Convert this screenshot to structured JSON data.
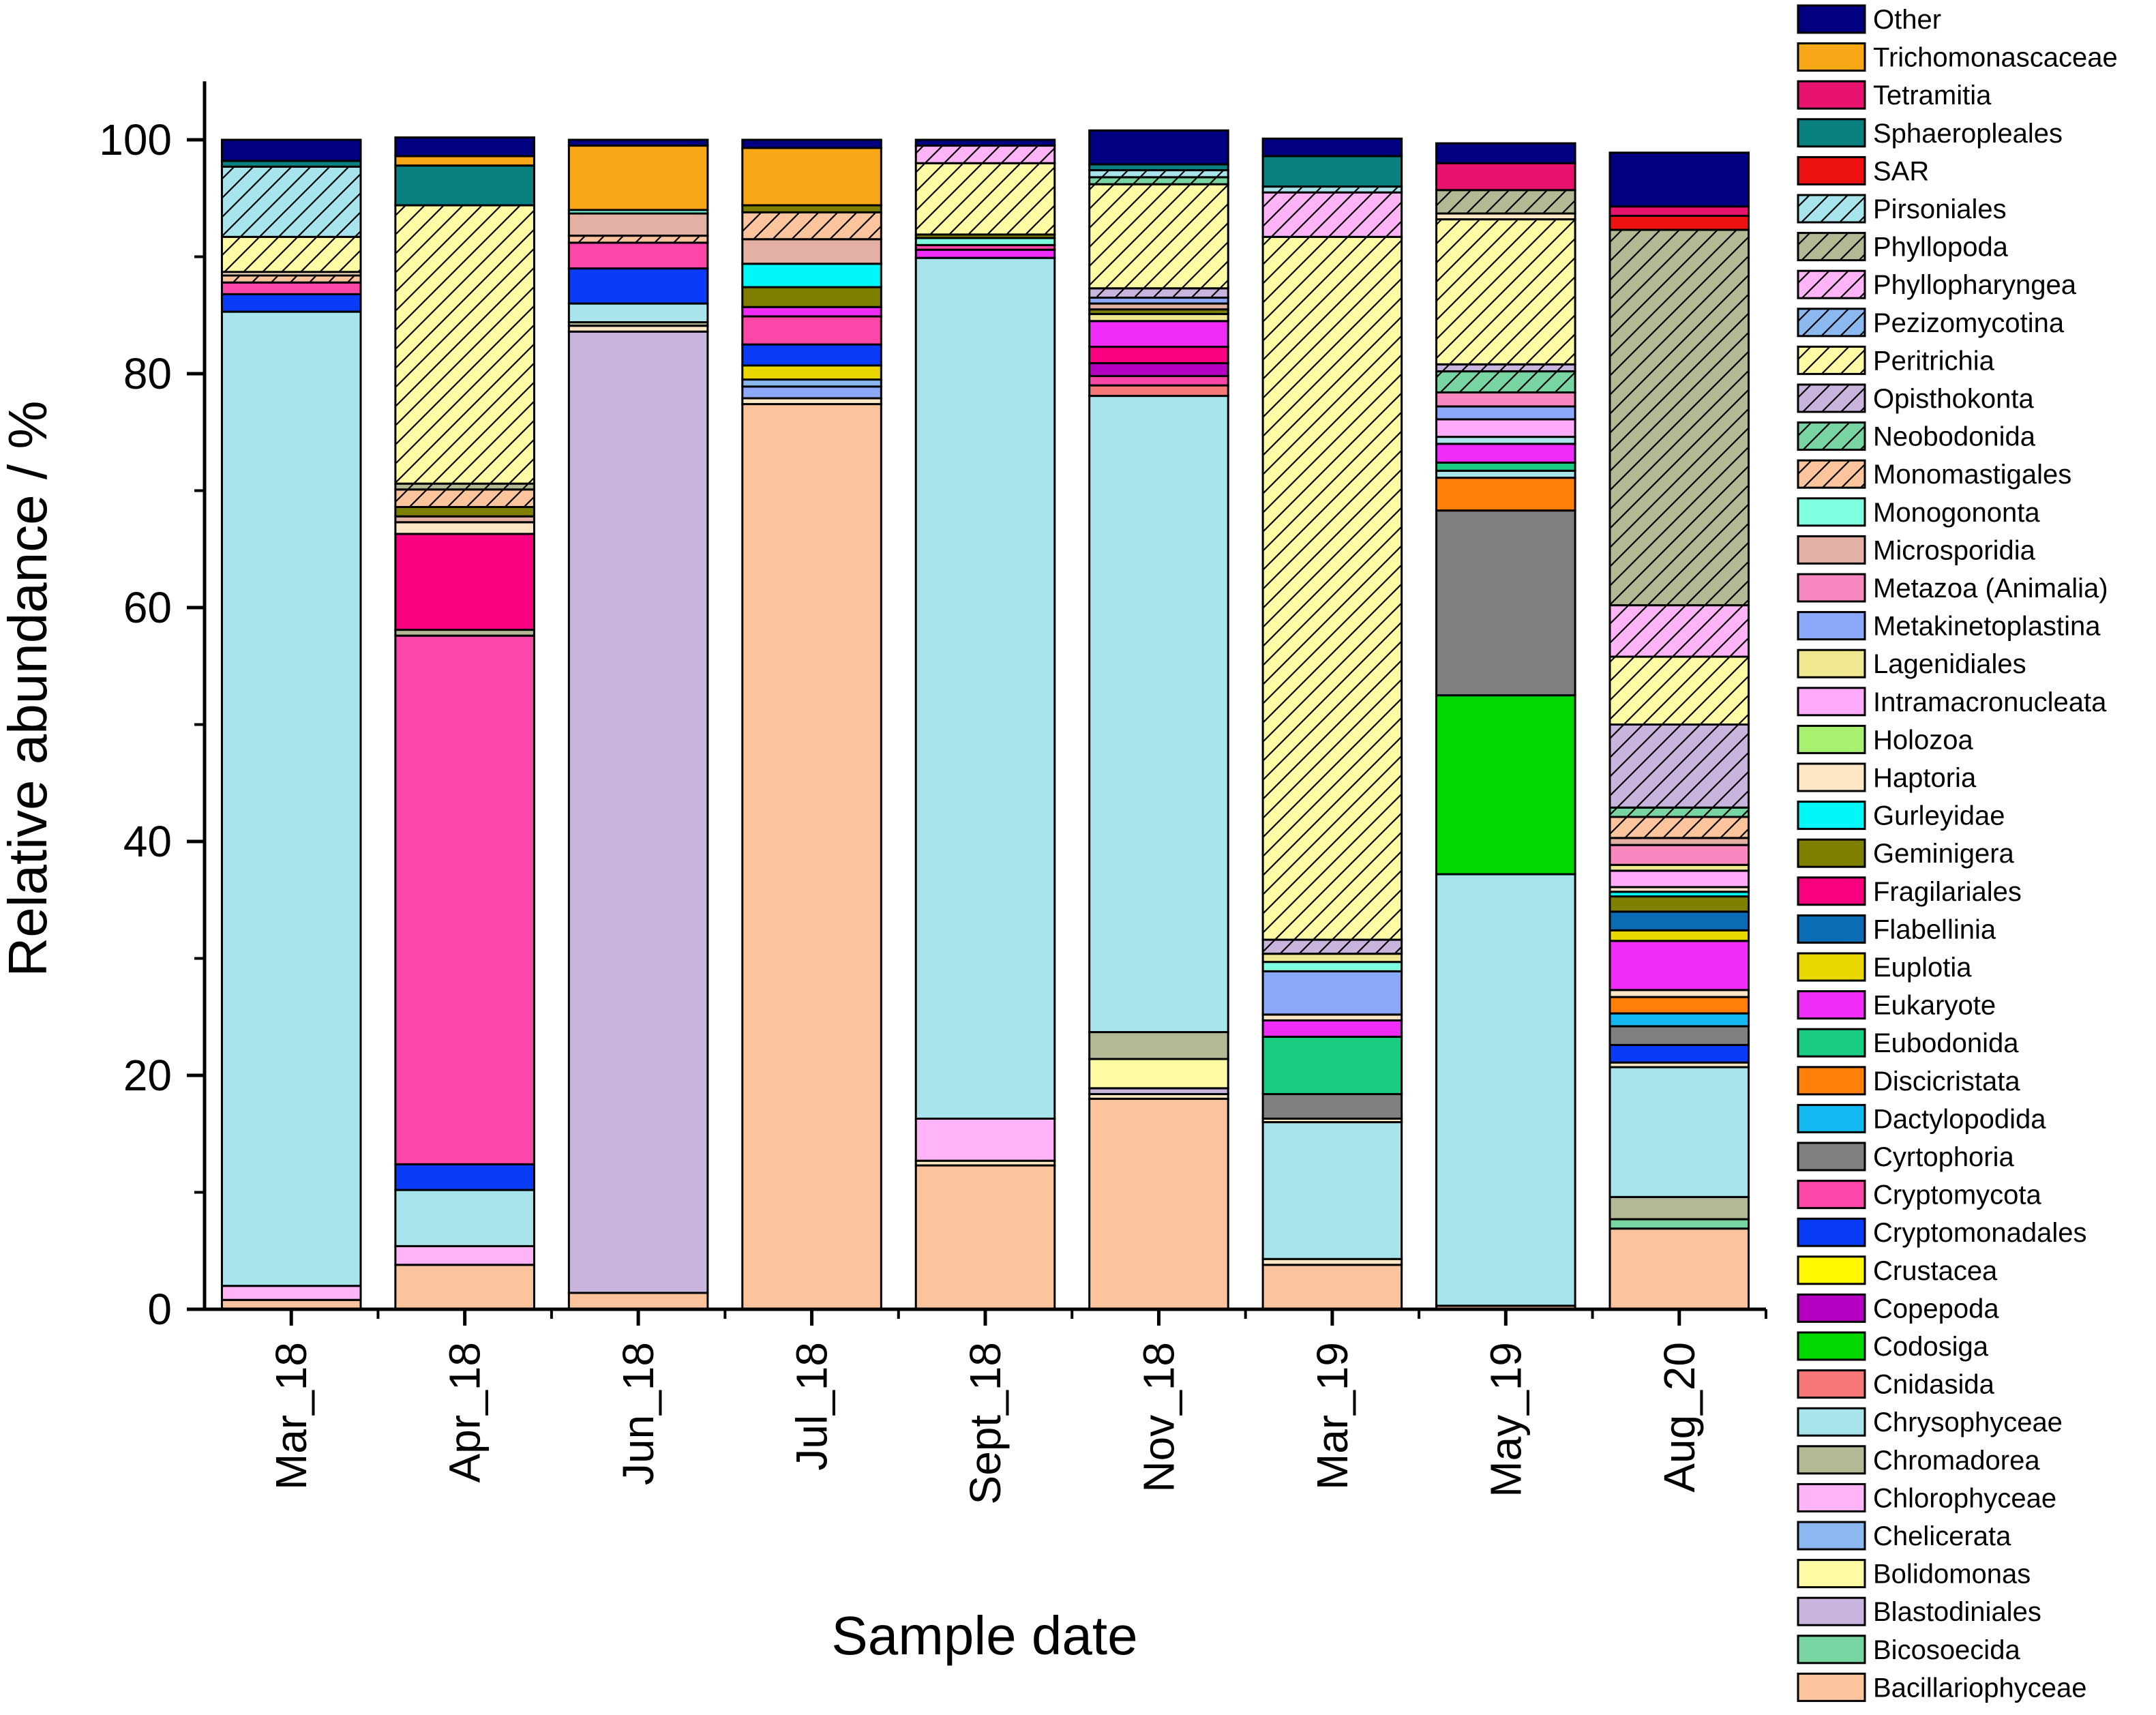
{
  "chart_data": {
    "type": "bar",
    "stacked": true,
    "title": "",
    "xlabel": "Sample date",
    "ylabel": "Relative abundance / %",
    "ylim": [
      0,
      105
    ],
    "yticks": [
      0,
      20,
      40,
      60,
      80,
      100
    ],
    "categories": [
      "Mar_18",
      "Apr_18",
      "Jun_18",
      "Jul_18",
      "Sept_18",
      "Nov_18",
      "Mar_19",
      "May_19",
      "Aug_20"
    ],
    "legend_position": "right",
    "legend": [
      "Other",
      "Trichomonascaceae",
      "Tetramitia",
      "Sphaeropleales",
      "SAR",
      "Pirsoniales",
      "Phyllopoda",
      "Phyllopharyngea",
      "Pezizomycotina",
      "Peritrichia",
      "Opisthokonta",
      "Neobodonida",
      "Monomastigales",
      "Monogononta",
      "Microsporidia",
      "Metazoa (Animalia)",
      "Metakinetoplastina",
      "Lagenidiales",
      "Intramacronucleata",
      "Holozoa",
      "Haptoria",
      "Gurleyidae",
      "Geminigera",
      "Fragilariales",
      "Flabellinia",
      "Euplotia",
      "Eukaryote",
      "Eubodonida",
      "Discicristata",
      "Dactylopodida",
      "Cyrtophoria",
      "Cryptomycota",
      "Cryptomonadales",
      "Crustacea",
      "Copepoda",
      "Codosiga",
      "Cnidasida",
      "Chrysophyceae",
      "Chromadorea",
      "Chlorophyceae",
      "Chelicerata",
      "Bolidomonas",
      "Blastodiniales",
      "Bicosoecida",
      "Bacillariophyceae"
    ],
    "series_styles": {
      "Other": {
        "color": "#000080",
        "hatch": "none"
      },
      "Trichomonascaceae": {
        "color": "#F8A817",
        "hatch": "none"
      },
      "Tetramitia": {
        "color": "#E8126F",
        "hatch": "none"
      },
      "Sphaeropleales": {
        "color": "#0A8080",
        "hatch": "none"
      },
      "SAR": {
        "color": "#EE1111",
        "hatch": "none"
      },
      "Pirsoniales": {
        "color": "#A8E4EC",
        "hatch": "diag"
      },
      "Phyllopoda": {
        "color": "#B4B894",
        "hatch": "diag"
      },
      "Phyllopharyngea": {
        "color": "#FFB4F8",
        "hatch": "diag"
      },
      "Pezizomycotina": {
        "color": "#8CB8F0",
        "hatch": "diag"
      },
      "Peritrichia": {
        "color": "#FFFAA4",
        "hatch": "diag"
      },
      "Opisthokonta": {
        "color": "#C8B4DC",
        "hatch": "diag"
      },
      "Neobodonida": {
        "color": "#78D4A0",
        "hatch": "diag"
      },
      "Monomastigales": {
        "color": "#FBC49C",
        "hatch": "diag"
      },
      "Monogononta": {
        "color": "#7EFFE0",
        "hatch": "none"
      },
      "Microsporidia": {
        "color": "#E4B0A4",
        "hatch": "none"
      },
      "Metazoa (Animalia)": {
        "color": "#F889C0",
        "hatch": "none"
      },
      "Metakinetoplastina": {
        "color": "#8CA8F8",
        "hatch": "none"
      },
      "Lagenidiales": {
        "color": "#F0E890",
        "hatch": "none"
      },
      "Intramacronucleata": {
        "color": "#FFAAFA",
        "hatch": "none"
      },
      "Holozoa": {
        "color": "#A8F070",
        "hatch": "none"
      },
      "Haptoria": {
        "color": "#FFE6C4",
        "hatch": "none"
      },
      "Gurleyidae": {
        "color": "#00F8F8",
        "hatch": "none"
      },
      "Geminigera": {
        "color": "#808000",
        "hatch": "none"
      },
      "Fragilariales": {
        "color": "#F80080",
        "hatch": "none"
      },
      "Flabellinia": {
        "color": "#0A6CB4",
        "hatch": "none"
      },
      "Euplotia": {
        "color": "#E8D800",
        "hatch": "none"
      },
      "Eukaryote": {
        "color": "#F02CF8",
        "hatch": "none"
      },
      "Eubodonida": {
        "color": "#18CC80",
        "hatch": "none"
      },
      "Discicristata": {
        "color": "#FF7F0A",
        "hatch": "none"
      },
      "Dactylopodida": {
        "color": "#14B8F0",
        "hatch": "none"
      },
      "Cyrtophoria": {
        "color": "#808080",
        "hatch": "none"
      },
      "Cryptomycota": {
        "color": "#FC46A8",
        "hatch": "none"
      },
      "Cryptomonadales": {
        "color": "#0A3CF8",
        "hatch": "none"
      },
      "Crustacea": {
        "color": "#FFF800",
        "hatch": "none"
      },
      "Copepoda": {
        "color": "#B400C0",
        "hatch": "none"
      },
      "Codosiga": {
        "color": "#00D800",
        "hatch": "none"
      },
      "Cnidasida": {
        "color": "#F87878",
        "hatch": "none"
      },
      "Chrysophyceae": {
        "color": "#A8E4EC",
        "hatch": "none"
      },
      "Chromadorea": {
        "color": "#B4B894",
        "hatch": "none"
      },
      "Chlorophyceae": {
        "color": "#FFB4F8",
        "hatch": "none"
      },
      "Chelicerata": {
        "color": "#8CB8F0",
        "hatch": "none"
      },
      "Bolidomonas": {
        "color": "#FFFAA4",
        "hatch": "none"
      },
      "Blastodiniales": {
        "color": "#C8B4DC",
        "hatch": "none"
      },
      "Bicosoecida": {
        "color": "#78D4A0",
        "hatch": "none"
      },
      "Bacillariophyceae": {
        "color": "#FBC49C",
        "hatch": "none"
      }
    },
    "bars": [
      {
        "category": "Mar_18",
        "segments": [
          {
            "taxon": "Bacillariophyceae",
            "value": 0.8
          },
          {
            "taxon": "Chlorophyceae",
            "value": 1.2
          },
          {
            "taxon": "Chrysophyceae",
            "value": 83.3
          },
          {
            "taxon": "Cryptomonadales",
            "value": 1.5
          },
          {
            "taxon": "Cryptomycota",
            "value": 1.0
          },
          {
            "taxon": "Monomastigales",
            "value": 0.6
          },
          {
            "taxon": "Haptoria",
            "value": 0.3
          },
          {
            "taxon": "Peritrichia",
            "value": 3.0
          },
          {
            "taxon": "Pirsoniales",
            "value": 6.0
          },
          {
            "taxon": "Sphaeropleales",
            "value": 0.5
          },
          {
            "taxon": "Other",
            "value": 1.8
          }
        ]
      },
      {
        "category": "Apr_18",
        "segments": [
          {
            "taxon": "Bacillariophyceae",
            "value": 3.8
          },
          {
            "taxon": "Chlorophyceae",
            "value": 1.6
          },
          {
            "taxon": "Chrysophyceae",
            "value": 4.8
          },
          {
            "taxon": "Cryptomonadales",
            "value": 2.2
          },
          {
            "taxon": "Cryptomycota",
            "value": 45.2
          },
          {
            "taxon": "Chromadorea",
            "value": 0.5
          },
          {
            "taxon": "Fragilariales",
            "value": 8.2
          },
          {
            "taxon": "Haptoria",
            "value": 1.0
          },
          {
            "taxon": "Microsporidia",
            "value": 0.5
          },
          {
            "taxon": "Geminigera",
            "value": 0.8
          },
          {
            "taxon": "Monomastigales",
            "value": 1.5
          },
          {
            "taxon": "Phyllopoda",
            "value": 0.5
          },
          {
            "taxon": "Peritrichia",
            "value": 23.8
          },
          {
            "taxon": "Sphaeropleales",
            "value": 3.4
          },
          {
            "taxon": "Trichomonascaceae",
            "value": 0.8
          },
          {
            "taxon": "Other",
            "value": 1.6
          }
        ]
      },
      {
        "category": "Jun_18",
        "segments": [
          {
            "taxon": "Bacillariophyceae",
            "value": 1.4
          },
          {
            "taxon": "Blastodiniales",
            "value": 82.2
          },
          {
            "taxon": "Haptoria",
            "value": 0.5
          },
          {
            "taxon": "Chromadorea",
            "value": 0.3
          },
          {
            "taxon": "Chrysophyceae",
            "value": 1.6
          },
          {
            "taxon": "Cryptomonadales",
            "value": 3.0
          },
          {
            "taxon": "Cryptomycota",
            "value": 2.2
          },
          {
            "taxon": "Monomastigales",
            "value": 0.6
          },
          {
            "taxon": "Microsporidia",
            "value": 1.9
          },
          {
            "taxon": "Monogononta",
            "value": 0.3
          },
          {
            "taxon": "Trichomonascaceae",
            "value": 5.5
          },
          {
            "taxon": "Other",
            "value": 0.5
          }
        ]
      },
      {
        "category": "Jul_18",
        "segments": [
          {
            "taxon": "Bacillariophyceae",
            "value": 77.4
          },
          {
            "taxon": "Haptoria",
            "value": 0.5
          },
          {
            "taxon": "Metakinetoplastina",
            "value": 1.0
          },
          {
            "taxon": "Chelicerata",
            "value": 0.6
          },
          {
            "taxon": "Euplotia",
            "value": 1.2
          },
          {
            "taxon": "Cryptomonadales",
            "value": 1.8
          },
          {
            "taxon": "Cryptomycota",
            "value": 2.4
          },
          {
            "taxon": "Eukaryote",
            "value": 0.8
          },
          {
            "taxon": "Geminigera",
            "value": 1.7
          },
          {
            "taxon": "Gurleyidae",
            "value": 2.0
          },
          {
            "taxon": "Microsporidia",
            "value": 2.1
          },
          {
            "taxon": "Monomastigales",
            "value": 2.3
          },
          {
            "taxon": "Geminigera",
            "value": 0.6
          },
          {
            "taxon": "Trichomonascaceae",
            "value": 4.9
          },
          {
            "taxon": "Other",
            "value": 0.7
          }
        ]
      },
      {
        "category": "Sept_18",
        "segments": [
          {
            "taxon": "Bacillariophyceae",
            "value": 12.3
          },
          {
            "taxon": "Haptoria",
            "value": 0.4
          },
          {
            "taxon": "Chlorophyceae",
            "value": 3.6
          },
          {
            "taxon": "Chrysophyceae",
            "value": 73.6
          },
          {
            "taxon": "Eukaryote",
            "value": 0.7
          },
          {
            "taxon": "Cryptomycota",
            "value": 0.4
          },
          {
            "taxon": "Monogononta",
            "value": 0.6
          },
          {
            "taxon": "Geminigera",
            "value": 0.3
          },
          {
            "taxon": "Peritrichia",
            "value": 6.1
          },
          {
            "taxon": "Phyllopharyngea",
            "value": 1.5
          },
          {
            "taxon": "Other",
            "value": 0.5
          }
        ]
      },
      {
        "category": "Nov_18",
        "segments": [
          {
            "taxon": "Bacillariophyceae",
            "value": 18.0
          },
          {
            "taxon": "Haptoria",
            "value": 0.4
          },
          {
            "taxon": "Blastodiniales",
            "value": 0.5
          },
          {
            "taxon": "Bolidomonas",
            "value": 2.5
          },
          {
            "taxon": "Chromadorea",
            "value": 2.3
          },
          {
            "taxon": "Chrysophyceae",
            "value": 54.4
          },
          {
            "taxon": "Cnidasida",
            "value": 0.9
          },
          {
            "taxon": "Cryptomycota",
            "value": 0.8
          },
          {
            "taxon": "Copepoda",
            "value": 1.1
          },
          {
            "taxon": "Fragilariales",
            "value": 1.4
          },
          {
            "taxon": "Eukaryote",
            "value": 2.2
          },
          {
            "taxon": "Lagenidiales",
            "value": 0.6
          },
          {
            "taxon": "Geminigera",
            "value": 0.4
          },
          {
            "taxon": "Microsporidia",
            "value": 0.5
          },
          {
            "taxon": "Metakinetoplastina",
            "value": 0.5
          },
          {
            "taxon": "Opisthokonta",
            "value": 0.8
          },
          {
            "taxon": "Peritrichia",
            "value": 8.9
          },
          {
            "taxon": "Neobodonida",
            "value": 0.6
          },
          {
            "taxon": "Pirsoniales",
            "value": 0.6
          },
          {
            "taxon": "Sphaeropleales",
            "value": 0.5
          },
          {
            "taxon": "Other",
            "value": 2.9
          }
        ]
      },
      {
        "category": "Mar_19",
        "segments": [
          {
            "taxon": "Bacillariophyceae",
            "value": 3.8
          },
          {
            "taxon": "Haptoria",
            "value": 0.5
          },
          {
            "taxon": "Chrysophyceae",
            "value": 11.7
          },
          {
            "taxon": "Haptoria",
            "value": 0.3
          },
          {
            "taxon": "Cyrtophoria",
            "value": 2.1
          },
          {
            "taxon": "Eubodonida",
            "value": 4.9
          },
          {
            "taxon": "Eukaryote",
            "value": 1.4
          },
          {
            "taxon": "Haptoria",
            "value": 0.5
          },
          {
            "taxon": "Metakinetoplastina",
            "value": 3.7
          },
          {
            "taxon": "Monogononta",
            "value": 0.8
          },
          {
            "taxon": "Lagenidiales",
            "value": 0.7
          },
          {
            "taxon": "Opisthokonta",
            "value": 1.2
          },
          {
            "taxon": "Peritrichia",
            "value": 60.1
          },
          {
            "taxon": "Phyllopharyngea",
            "value": 3.8
          },
          {
            "taxon": "Pirsoniales",
            "value": 0.5
          },
          {
            "taxon": "Sphaeropleales",
            "value": 2.6
          },
          {
            "taxon": "Other",
            "value": 1.5
          }
        ]
      },
      {
        "category": "May_19",
        "segments": [
          {
            "taxon": "Bacillariophyceae",
            "value": 0.3
          },
          {
            "taxon": "Chrysophyceae",
            "value": 36.9
          },
          {
            "taxon": "Codosiga",
            "value": 15.3
          },
          {
            "taxon": "Cyrtophoria",
            "value": 15.8
          },
          {
            "taxon": "Discicristata",
            "value": 2.8
          },
          {
            "taxon": "Chrysophyceae",
            "value": 0.6
          },
          {
            "taxon": "Eubodonida",
            "value": 0.7
          },
          {
            "taxon": "Eukaryote",
            "value": 1.6
          },
          {
            "taxon": "Chrysophyceae",
            "value": 0.6
          },
          {
            "taxon": "Intramacronucleata",
            "value": 1.5
          },
          {
            "taxon": "Metakinetoplastina",
            "value": 1.1
          },
          {
            "taxon": "Metazoa (Animalia)",
            "value": 1.2
          },
          {
            "taxon": "Neobodonida",
            "value": 1.8
          },
          {
            "taxon": "Opisthokonta",
            "value": 0.6
          },
          {
            "taxon": "Peritrichia",
            "value": 12.4
          },
          {
            "taxon": "Haptoria",
            "value": 0.5
          },
          {
            "taxon": "Phyllopoda",
            "value": 2.0
          },
          {
            "taxon": "Tetramitia",
            "value": 2.3
          },
          {
            "taxon": "Other",
            "value": 1.7
          }
        ]
      },
      {
        "category": "Aug_20",
        "segments": [
          {
            "taxon": "Bacillariophyceae",
            "value": 6.9
          },
          {
            "taxon": "Bicosoecida",
            "value": 0.8
          },
          {
            "taxon": "Chromadorea",
            "value": 1.9
          },
          {
            "taxon": "Chrysophyceae",
            "value": 11.1
          },
          {
            "taxon": "Haptoria",
            "value": 0.4
          },
          {
            "taxon": "Cryptomonadales",
            "value": 1.5
          },
          {
            "taxon": "Cyrtophoria",
            "value": 1.6
          },
          {
            "taxon": "Dactylopodida",
            "value": 1.1
          },
          {
            "taxon": "Discicristata",
            "value": 1.4
          },
          {
            "taxon": "Haptoria",
            "value": 0.6
          },
          {
            "taxon": "Eukaryote",
            "value": 4.2
          },
          {
            "taxon": "Euplotia",
            "value": 0.9
          },
          {
            "taxon": "Flabellinia",
            "value": 1.6
          },
          {
            "taxon": "Geminigera",
            "value": 1.3
          },
          {
            "taxon": "Gurleyidae",
            "value": 0.4
          },
          {
            "taxon": "Haptoria",
            "value": 0.4
          },
          {
            "taxon": "Intramacronucleata",
            "value": 1.4
          },
          {
            "taxon": "Lagenidiales",
            "value": 0.5
          },
          {
            "taxon": "Metazoa (Animalia)",
            "value": 1.7
          },
          {
            "taxon": "Microsporidia",
            "value": 0.6
          },
          {
            "taxon": "Monomastigales",
            "value": 1.8
          },
          {
            "taxon": "Neobodonida",
            "value": 0.8
          },
          {
            "taxon": "Opisthokonta",
            "value": 7.1
          },
          {
            "taxon": "Peritrichia",
            "value": 5.8
          },
          {
            "taxon": "Phyllopharyngea",
            "value": 4.4
          },
          {
            "taxon": "Phyllopoda",
            "value": 32.1
          },
          {
            "taxon": "SAR",
            "value": 1.2
          },
          {
            "taxon": "Tetramitia",
            "value": 0.8
          },
          {
            "taxon": "Other",
            "value": 4.6
          }
        ]
      }
    ]
  }
}
